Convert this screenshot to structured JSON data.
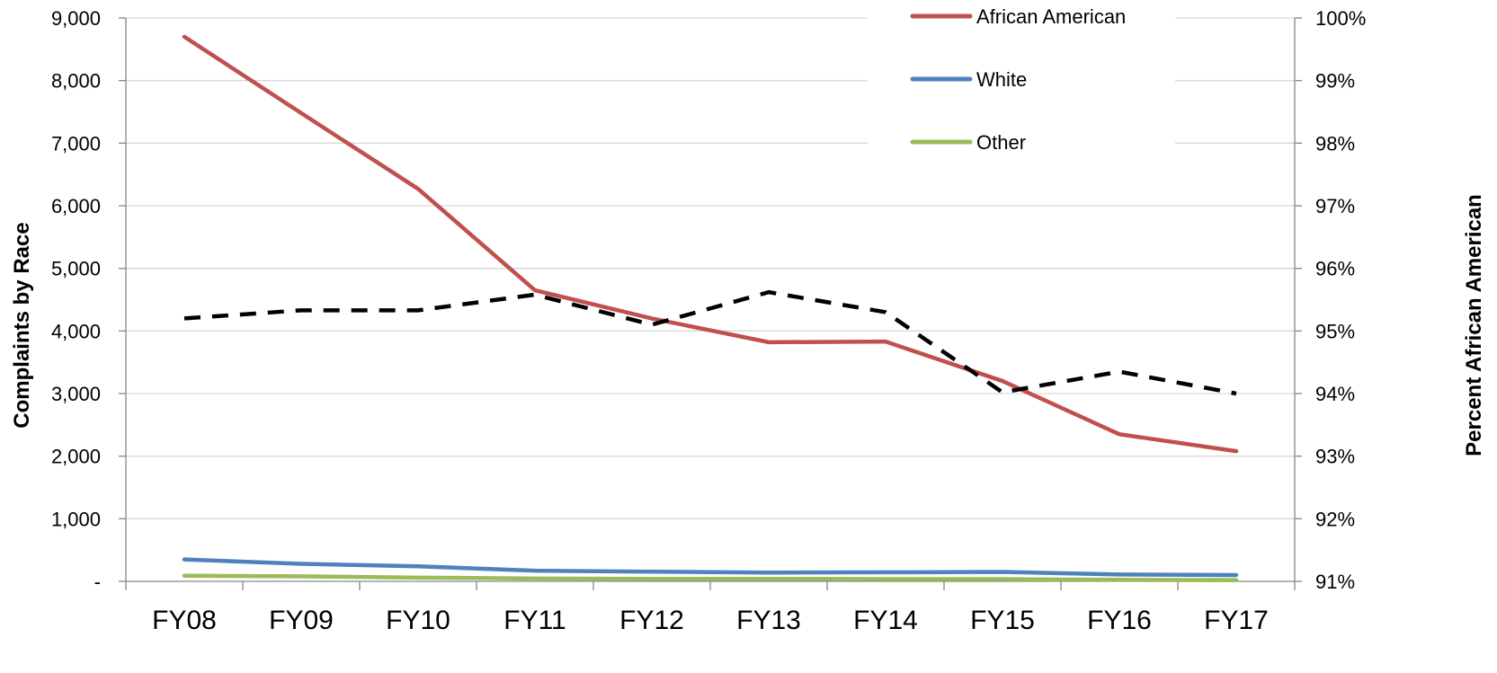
{
  "chart_data": {
    "type": "line",
    "categories": [
      "FY08",
      "FY09",
      "FY10",
      "FY11",
      "FY12",
      "FY13",
      "FY14",
      "FY15",
      "FY16",
      "FY17"
    ],
    "y_left": {
      "label": "Complaints by Race",
      "range": [
        0,
        9000
      ],
      "tick_labels": [
        "-",
        "1,000",
        "2,000",
        "3,000",
        "4,000",
        "5,000",
        "6,000",
        "7,000",
        "8,000",
        "9,000"
      ]
    },
    "y_right": {
      "label": "Percent African American",
      "range": [
        91,
        100
      ],
      "tick_labels": [
        "91%",
        "92%",
        "93%",
        "94%",
        "95%",
        "96%",
        "97%",
        "98%",
        "99%",
        "100%"
      ]
    },
    "grid": "horizontal",
    "legend_position": "top-right",
    "series": [
      {
        "name": "African American",
        "axis": "left",
        "color": "#c0504d",
        "style": "solid",
        "values": [
          8700,
          7480,
          6270,
          4650,
          4200,
          3820,
          3830,
          3200,
          2350,
          2080
        ]
      },
      {
        "name": "White",
        "axis": "left",
        "color": "#4f81bd",
        "style": "solid",
        "values": [
          350,
          280,
          240,
          170,
          155,
          140,
          145,
          150,
          110,
          100
        ]
      },
      {
        "name": "Other",
        "axis": "left",
        "color": "#9bbb59",
        "style": "solid",
        "values": [
          90,
          80,
          60,
          45,
          40,
          40,
          35,
          35,
          25,
          20
        ]
      },
      {
        "axis": "right",
        "color": "#000000",
        "style": "dashed",
        "values": [
          95.2,
          95.33,
          95.33,
          95.58,
          95.1,
          95.62,
          95.3,
          94.02,
          94.35,
          94.0
        ]
      }
    ]
  }
}
